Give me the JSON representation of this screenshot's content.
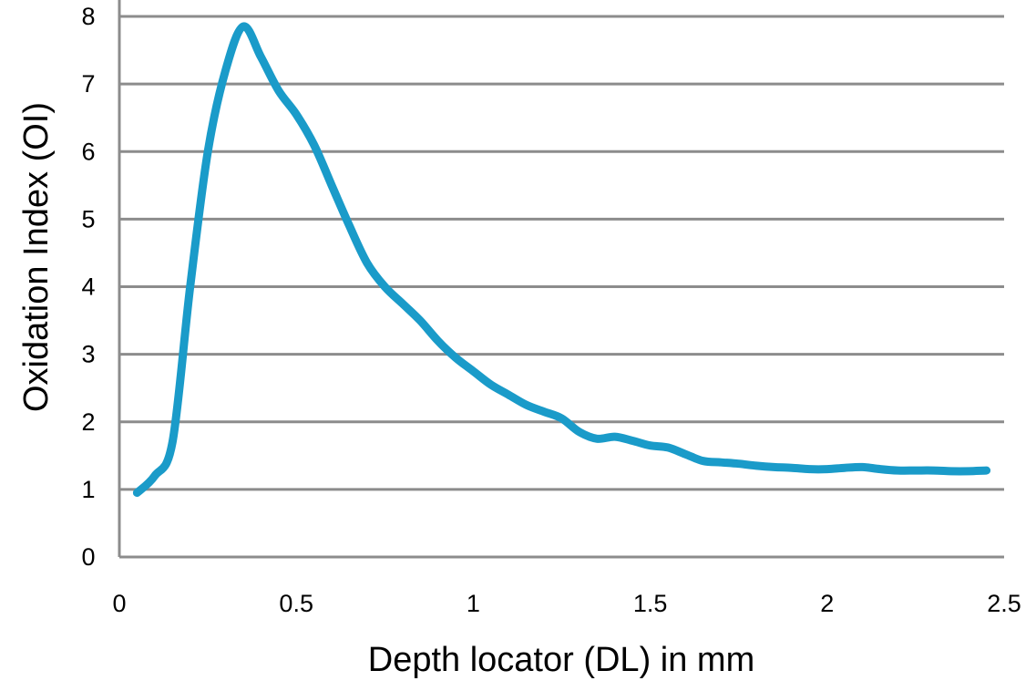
{
  "chart_data": {
    "type": "line",
    "title": "",
    "xlabel": "Depth locator (DL) in mm",
    "ylabel": "Oxidation Index (OI)",
    "xlim": [
      0,
      2.5
    ],
    "ylim": [
      0,
      8
    ],
    "x_ticks": [
      "0",
      "0.5",
      "1",
      "1.5",
      "2",
      "2.5"
    ],
    "y_ticks": [
      "0",
      "1",
      "2",
      "3",
      "4",
      "5",
      "6",
      "7",
      "8"
    ],
    "grid": "horizontal",
    "legend": "none",
    "series": [
      {
        "color": "#1a9bc9",
        "x": [
          0.05,
          0.1,
          0.15,
          0.2,
          0.25,
          0.3,
          0.35,
          0.4,
          0.45,
          0.5,
          0.55,
          0.6,
          0.65,
          0.7,
          0.75,
          0.8,
          0.85,
          0.9,
          0.95,
          1.0,
          1.05,
          1.1,
          1.15,
          1.2,
          1.25,
          1.3,
          1.35,
          1.4,
          1.45,
          1.5,
          1.55,
          1.6,
          1.65,
          1.7,
          1.75,
          1.8,
          1.85,
          1.9,
          1.95,
          2.0,
          2.05,
          2.1,
          2.15,
          2.2,
          2.25,
          2.3,
          2.35,
          2.4,
          2.45
        ],
        "y": [
          0.95,
          1.2,
          1.7,
          4.0,
          6.0,
          7.2,
          7.85,
          7.4,
          6.9,
          6.55,
          6.1,
          5.5,
          4.9,
          4.35,
          4.0,
          3.75,
          3.5,
          3.2,
          2.95,
          2.75,
          2.55,
          2.4,
          2.25,
          2.15,
          2.05,
          1.85,
          1.75,
          1.78,
          1.72,
          1.65,
          1.62,
          1.52,
          1.42,
          1.4,
          1.38,
          1.35,
          1.33,
          1.32,
          1.3,
          1.3,
          1.32,
          1.33,
          1.3,
          1.28,
          1.28,
          1.28,
          1.27,
          1.27,
          1.28
        ]
      }
    ]
  }
}
